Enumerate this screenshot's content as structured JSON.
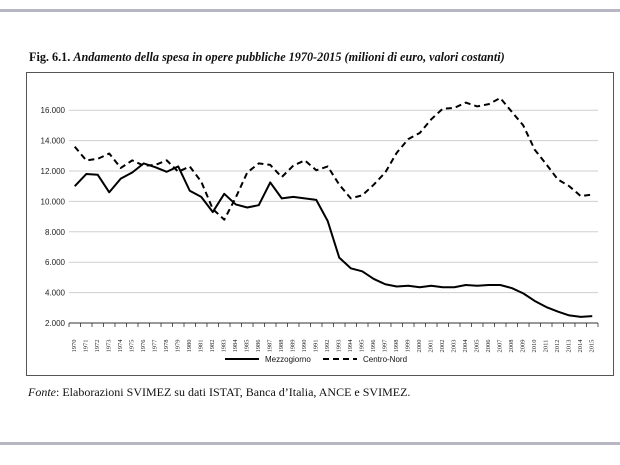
{
  "figure": {
    "label": "Fig. 6.1.",
    "title": "Andamento della spesa in opere pubbliche 1970-2015 (milioni di euro, valori costanti)"
  },
  "source": {
    "label": "Fonte",
    "text": ": Elaborazioni SVIMEZ su dati ISTAT, Banca d’Italia, ANCE e SVIMEZ."
  },
  "colors": {
    "line": "#000000",
    "grid": "#cfcfcf",
    "frame_rule": "#b7b7c4"
  },
  "chart_data": {
    "type": "line",
    "title": "",
    "xlabel": "",
    "ylabel": "",
    "ylim": [
      2000,
      17000
    ],
    "yticks": [
      2000,
      4000,
      6000,
      8000,
      10000,
      12000,
      14000,
      16000
    ],
    "ytick_labels": [
      "2.000",
      "4.000",
      "6.000",
      "8.000",
      "10.000",
      "12.000",
      "14.000",
      "16.000"
    ],
    "grid": "horizontal",
    "legend_position": "bottom",
    "categories": [
      "1970",
      "1971",
      "1972",
      "1973",
      "1974",
      "1975",
      "1976",
      "1977",
      "1978",
      "1979",
      "1980",
      "1981",
      "1982",
      "1983",
      "1984",
      "1985",
      "1986",
      "1987",
      "1988",
      "1989",
      "1990",
      "1991",
      "1992",
      "1993",
      "1994",
      "1995",
      "1996",
      "1997",
      "1998",
      "1999",
      "2000",
      "2001",
      "2002",
      "2003",
      "2004",
      "2005",
      "2006",
      "2007",
      "2008",
      "2009",
      "2010",
      "2011",
      "2012",
      "2013",
      "2014",
      "2015"
    ],
    "series": [
      {
        "name": "Mezzogiorno",
        "style": "solid",
        "values": [
          11000,
          11800,
          11750,
          10600,
          11500,
          11900,
          12500,
          12250,
          11950,
          12300,
          10700,
          10300,
          9300,
          10500,
          9800,
          9600,
          9750,
          11250,
          10200,
          10300,
          10200,
          10100,
          8700,
          6300,
          5600,
          5400,
          4900,
          4550,
          4400,
          4450,
          4350,
          4450,
          4350,
          4350,
          4500,
          4450,
          4500,
          4500,
          4300,
          3950,
          3450,
          3050,
          2750,
          2500,
          2400,
          2450
        ]
      },
      {
        "name": "Centro-Nord",
        "style": "dashed",
        "values": [
          13600,
          12700,
          12800,
          13150,
          12200,
          12700,
          12350,
          12400,
          12700,
          11950,
          12300,
          11300,
          9500,
          8800,
          10250,
          11900,
          12500,
          12400,
          11600,
          12350,
          12700,
          12050,
          12300,
          11100,
          10200,
          10400,
          11100,
          11900,
          13200,
          14100,
          14500,
          15400,
          16100,
          16150,
          16500,
          16250,
          16400,
          16800,
          15900,
          15000,
          13400,
          12450,
          11450,
          11000,
          10350,
          10450
        ]
      }
    ]
  }
}
